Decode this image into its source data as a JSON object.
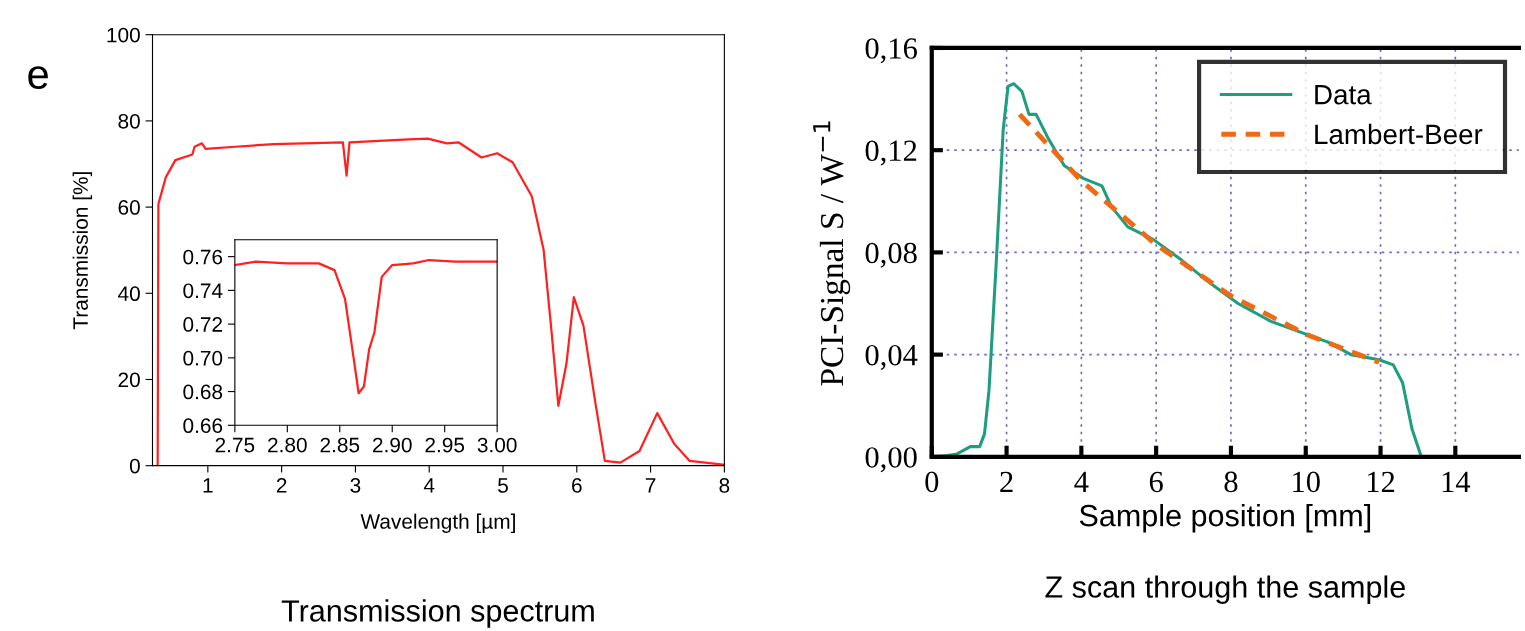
{
  "chart_data": [
    {
      "type": "line",
      "title": "Transmission spectrum",
      "xlabel": "Wavelength [µm]",
      "ylabel": "Transmission [%]",
      "annotations": [
        "e"
      ],
      "xlim": [
        0.25,
        8
      ],
      "ylim": [
        0,
        100
      ],
      "xticks": [
        1,
        2,
        3,
        4,
        5,
        6,
        7,
        8
      ],
      "yticks": [
        0,
        20,
        40,
        60,
        80,
        100
      ],
      "grid": false,
      "legend": false,
      "series": [
        {
          "color": "#ff2020",
          "x": [
            0.32,
            0.33,
            0.43,
            0.56,
            0.79,
            0.82,
            0.92,
            0.97,
            1.37,
            1.89,
            2.83,
            2.88,
            2.92,
            3.72,
            3.98,
            4.24,
            4.4,
            4.71,
            4.92,
            5.13,
            5.39,
            5.55,
            5.65,
            5.75,
            5.86,
            5.96,
            6.09,
            6.25,
            6.38,
            6.59,
            6.85,
            7.09,
            7.32,
            7.53,
            8.0
          ],
          "values": [
            0,
            60.7,
            66.9,
            70.9,
            72.2,
            74,
            74.8,
            73.5,
            74,
            74.6,
            75,
            67.3,
            75,
            75.7,
            75.9,
            74.8,
            75,
            71.5,
            72.5,
            70.4,
            62.5,
            50.1,
            32.5,
            13.9,
            23.7,
            39.1,
            32.5,
            14.8,
            1.1,
            0.7,
            3.4,
            12.2,
            5.1,
            1.1,
            0.2
          ]
        }
      ]
    },
    {
      "type": "line",
      "xlim": [
        2.75,
        3.0
      ],
      "ylim": [
        0.66,
        0.77
      ],
      "xticks": [
        {
          "value": 2.75,
          "label": "2.75"
        },
        {
          "value": 2.8,
          "label": "2.80"
        },
        {
          "value": 2.85,
          "label": "2.85"
        },
        {
          "value": 2.9,
          "label": "2.90"
        },
        {
          "value": 2.95,
          "label": "2.95"
        },
        {
          "value": 3.0,
          "label": "3.00"
        }
      ],
      "yticks": [
        {
          "value": 0.66,
          "label": "0.66"
        },
        {
          "value": 0.68,
          "label": "0.68"
        },
        {
          "value": 0.7,
          "label": "0.70"
        },
        {
          "value": 0.72,
          "label": "0.72"
        },
        {
          "value": 0.74,
          "label": "0.74"
        },
        {
          "value": 0.76,
          "label": "0.76"
        }
      ],
      "grid": false,
      "legend": false,
      "series": [
        {
          "color": "#ff2020",
          "x": [
            2.75,
            2.77,
            2.8,
            2.83,
            2.845,
            2.855,
            2.862,
            2.868,
            2.873,
            2.878,
            2.883,
            2.89,
            2.9,
            2.92,
            2.935,
            2.96,
            3.0
          ],
          "values": [
            0.755,
            0.757,
            0.756,
            0.756,
            0.752,
            0.735,
            0.705,
            0.679,
            0.683,
            0.705,
            0.715,
            0.748,
            0.755,
            0.756,
            0.758,
            0.757,
            0.757
          ]
        }
      ]
    },
    {
      "type": "line",
      "title": "Z scan through the sample",
      "xlabel": "Sample position [mm]",
      "ylabel": "PCI-Signal S / W$^{−1}$",
      "xlim": [
        0,
        15.7
      ],
      "ylim": [
        0,
        0.16
      ],
      "xticks": [
        0,
        2,
        4,
        6,
        8,
        10,
        12,
        14
      ],
      "yticks": [
        {
          "value": 0,
          "label": "0,00"
        },
        {
          "value": 0.04,
          "label": "0,04"
        },
        {
          "value": 0.08,
          "label": "0,08"
        },
        {
          "value": 0.12,
          "label": "0,12"
        },
        {
          "value": 0.16,
          "label": "0,16"
        }
      ],
      "grid": true,
      "legend": "top right",
      "series": [
        {
          "name": "Data",
          "color": "#1f9e7f",
          "line_style": "solid",
          "x": [
            0.15,
            0.65,
            1.03,
            1.28,
            1.41,
            1.53,
            1.72,
            1.91,
            2.04,
            2.19,
            2.41,
            2.6,
            2.79,
            3.1,
            3.54,
            4.05,
            4.55,
            4.8,
            5.24,
            5.93,
            6.68,
            7.44,
            8.19,
            9.07,
            9.82,
            10.58,
            11.21,
            11.96,
            12.34,
            12.59,
            12.84,
            13.09,
            13.59
          ],
          "values": [
            0,
            0.001,
            0.004,
            0.004,
            0.009,
            0.026,
            0.075,
            0.128,
            0.145,
            0.146,
            0.143,
            0.134,
            0.134,
            0.125,
            0.114,
            0.109,
            0.106,
            0.098,
            0.09,
            0.085,
            0.077,
            0.068,
            0.06,
            0.053,
            0.049,
            0.045,
            0.04,
            0.038,
            0.036,
            0.029,
            0.011,
            0,
            0
          ]
        },
        {
          "name": "Lambert-Beer",
          "color": "#ee6a14",
          "line_style": "dashed",
          "x": [
            2.35,
            4,
            6,
            8,
            10,
            11.96
          ],
          "values": [
            0.134,
            0.108,
            0.083,
            0.063,
            0.048,
            0.037
          ]
        }
      ]
    }
  ]
}
